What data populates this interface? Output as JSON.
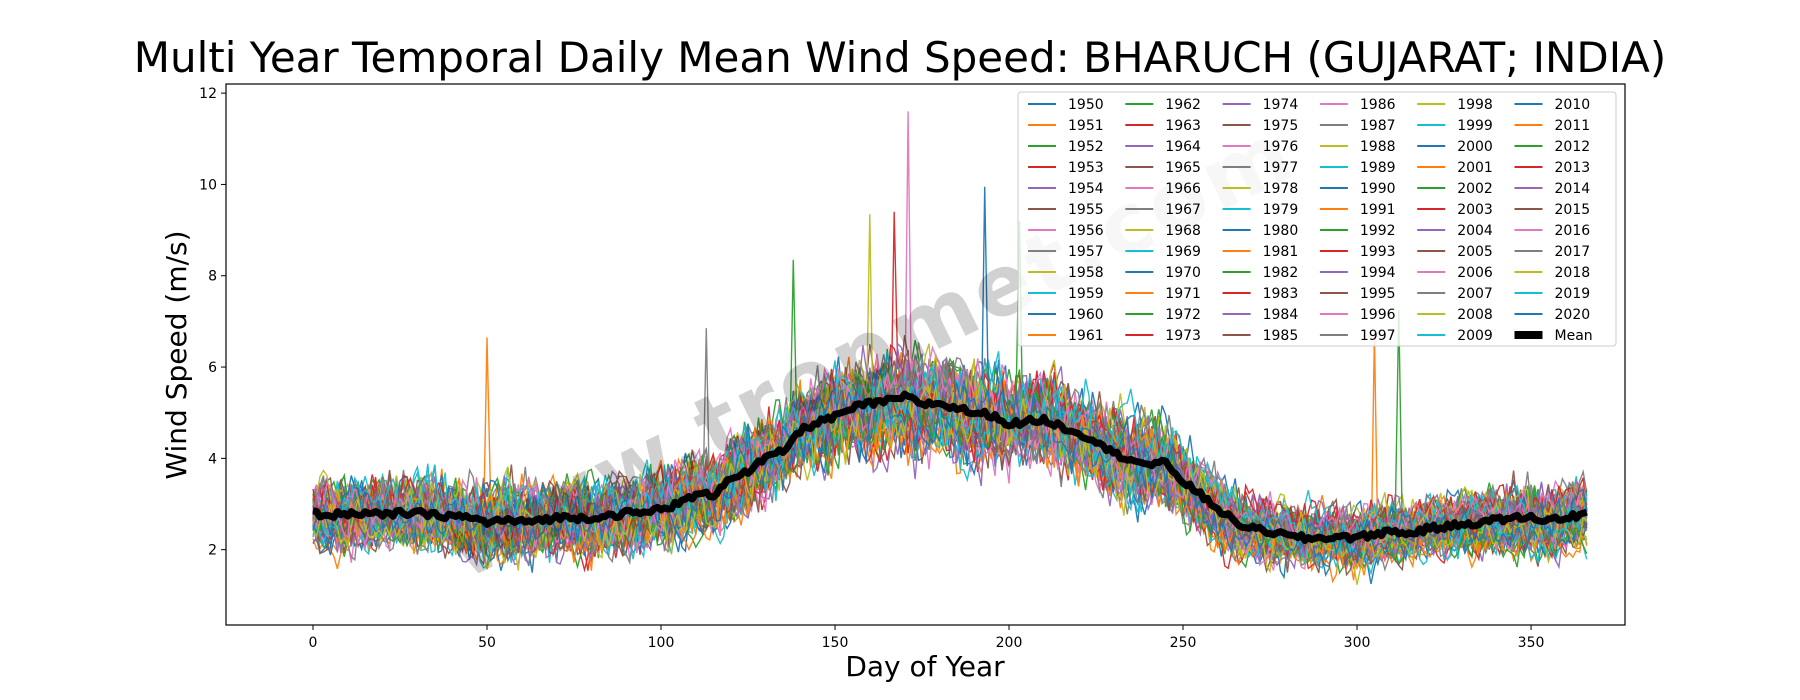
{
  "chart_data": {
    "type": "line",
    "title": "Multi Year Temporal Daily Mean Wind Speed: BHARUCH (GUJARAT; INDIA)",
    "xlabel": "Day of Year",
    "ylabel": "Wind Speed (m/s)",
    "xlim": [
      -25,
      377
    ],
    "ylim": [
      0.35,
      12.2
    ],
    "xticks": [
      0,
      50,
      100,
      150,
      200,
      250,
      300,
      350
    ],
    "yticks": [
      2,
      4,
      6,
      8,
      10,
      12
    ],
    "grid": false,
    "legend_position": "top-right",
    "legend_columns": 6,
    "watermark": "www.tropmet.com",
    "palette": [
      "#1f77b4",
      "#ff7f0e",
      "#2ca02c",
      "#d62728",
      "#9467bd",
      "#8c564b",
      "#e377c2",
      "#7f7f7f",
      "#bcbd22",
      "#17becf"
    ],
    "years_first": 1950,
    "years_last": 2020,
    "series": [
      {
        "name": "1950"
      },
      {
        "name": "1951"
      },
      {
        "name": "1952"
      },
      {
        "name": "1953"
      },
      {
        "name": "1954"
      },
      {
        "name": "1955"
      },
      {
        "name": "1956"
      },
      {
        "name": "1957"
      },
      {
        "name": "1958"
      },
      {
        "name": "1959"
      },
      {
        "name": "1960"
      },
      {
        "name": "1961"
      },
      {
        "name": "1962"
      },
      {
        "name": "1963"
      },
      {
        "name": "1964"
      },
      {
        "name": "1965"
      },
      {
        "name": "1966"
      },
      {
        "name": "1967"
      },
      {
        "name": "1968"
      },
      {
        "name": "1969"
      },
      {
        "name": "1970"
      },
      {
        "name": "1971"
      },
      {
        "name": "1972"
      },
      {
        "name": "1973"
      },
      {
        "name": "1974"
      },
      {
        "name": "1975"
      },
      {
        "name": "1976"
      },
      {
        "name": "1977"
      },
      {
        "name": "1978"
      },
      {
        "name": "1979"
      },
      {
        "name": "1980"
      },
      {
        "name": "1981"
      },
      {
        "name": "1982"
      },
      {
        "name": "1983"
      },
      {
        "name": "1984"
      },
      {
        "name": "1985"
      },
      {
        "name": "1986"
      },
      {
        "name": "1987"
      },
      {
        "name": "1988"
      },
      {
        "name": "1989"
      },
      {
        "name": "1990"
      },
      {
        "name": "1991"
      },
      {
        "name": "1992"
      },
      {
        "name": "1993"
      },
      {
        "name": "1994"
      },
      {
        "name": "1995"
      },
      {
        "name": "1996"
      },
      {
        "name": "1997"
      },
      {
        "name": "1998"
      },
      {
        "name": "1999"
      },
      {
        "name": "2000"
      },
      {
        "name": "2001"
      },
      {
        "name": "2002"
      },
      {
        "name": "2003"
      },
      {
        "name": "2004"
      },
      {
        "name": "2005"
      },
      {
        "name": "2006"
      },
      {
        "name": "2007"
      },
      {
        "name": "2008"
      },
      {
        "name": "2009"
      },
      {
        "name": "2010"
      },
      {
        "name": "2011"
      },
      {
        "name": "2012"
      },
      {
        "name": "2013"
      },
      {
        "name": "2014"
      },
      {
        "name": "2015"
      },
      {
        "name": "2016"
      },
      {
        "name": "2017"
      },
      {
        "name": "2018"
      },
      {
        "name": "2019"
      },
      {
        "name": "2020"
      }
    ],
    "mean_series": {
      "name": "Mean",
      "color": "#000000",
      "x": [
        0,
        5,
        10,
        15,
        20,
        25,
        30,
        35,
        40,
        45,
        50,
        55,
        60,
        65,
        70,
        75,
        80,
        85,
        90,
        95,
        100,
        105,
        110,
        115,
        120,
        125,
        130,
        135,
        140,
        145,
        150,
        155,
        160,
        165,
        170,
        175,
        180,
        185,
        190,
        195,
        200,
        205,
        210,
        215,
        220,
        225,
        230,
        235,
        240,
        245,
        250,
        255,
        260,
        265,
        270,
        275,
        280,
        285,
        290,
        295,
        300,
        305,
        310,
        315,
        320,
        325,
        330,
        335,
        340,
        345,
        350,
        355,
        360,
        366
      ],
      "y": [
        2.8,
        2.75,
        2.8,
        2.8,
        2.75,
        2.8,
        2.8,
        2.75,
        2.75,
        2.7,
        2.6,
        2.65,
        2.6,
        2.65,
        2.7,
        2.7,
        2.7,
        2.75,
        2.8,
        2.8,
        2.9,
        3.0,
        3.2,
        3.2,
        3.6,
        3.7,
        4.0,
        4.15,
        4.6,
        4.8,
        4.9,
        5.1,
        5.2,
        5.25,
        5.35,
        5.2,
        5.2,
        5.1,
        5.0,
        4.95,
        4.75,
        4.8,
        4.85,
        4.7,
        4.55,
        4.4,
        4.1,
        4.0,
        3.85,
        3.9,
        3.5,
        3.2,
        2.9,
        2.6,
        2.45,
        2.4,
        2.3,
        2.25,
        2.25,
        2.3,
        2.25,
        2.35,
        2.4,
        2.35,
        2.45,
        2.5,
        2.55,
        2.6,
        2.65,
        2.7,
        2.7,
        2.65,
        2.7,
        2.8
      ]
    },
    "seasonal_envelope": {
      "x": [
        0,
        50,
        100,
        120,
        140,
        160,
        170,
        190,
        210,
        230,
        250,
        270,
        290,
        310,
        330,
        366
      ],
      "spread": [
        1.1,
        1.2,
        1.3,
        1.4,
        1.5,
        1.6,
        1.6,
        1.6,
        1.5,
        1.4,
        1.3,
        1.0,
        0.9,
        0.9,
        0.95,
        1.1
      ]
    },
    "spikes": [
      {
        "year": "1961",
        "day": 50,
        "value": 6.65
      },
      {
        "year": "1997",
        "day": 113,
        "value": 6.85
      },
      {
        "year": "1982",
        "day": 138,
        "value": 8.35
      },
      {
        "year": "1998",
        "day": 160,
        "value": 9.35
      },
      {
        "year": "1963",
        "day": 167,
        "value": 9.4
      },
      {
        "year": "1966",
        "day": 171,
        "value": 11.6
      },
      {
        "year": "2010",
        "day": 193,
        "value": 9.95
      },
      {
        "year": "2002",
        "day": 203,
        "value": 9.2
      },
      {
        "year": "1991",
        "day": 305,
        "value": 6.75
      },
      {
        "year": "1992",
        "day": 312,
        "value": 7.25
      }
    ]
  }
}
